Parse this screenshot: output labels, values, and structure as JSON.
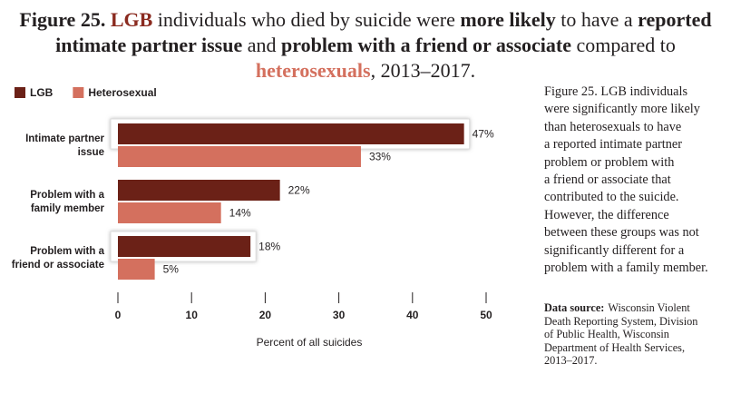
{
  "chart_data": {
    "type": "hbar",
    "title": [
      {
        "text": "Figure 25. ",
        "bold": true
      },
      {
        "text": "LGB",
        "bold": true,
        "color": "#8a2a1f"
      },
      {
        "text": " individuals who died by suicide were "
      },
      {
        "text": "more likely",
        "bold": true
      },
      {
        "text": " to have a "
      },
      {
        "text": "reported intimate partner issue",
        "bold": true
      },
      {
        "text": " and "
      },
      {
        "text": "problem with a friend or associate",
        "bold": true
      },
      {
        "text": " compared to "
      },
      {
        "text": "heterosexuals",
        "bold": true,
        "color": "#d4705e"
      },
      {
        "text": ", 2013–2017."
      }
    ],
    "categories": [
      "Intimate partner\nissue",
      "Problem with a\nfamily member",
      "Problem with a\nfriend or associate"
    ],
    "series": [
      {
        "name": "LGB",
        "color": "#6b2117",
        "values": [
          47,
          22,
          18
        ],
        "value_labels": [
          "47%",
          "22%",
          "18%"
        ],
        "highlighted": [
          true,
          false,
          true
        ]
      },
      {
        "name": "Heterosexual",
        "color": "#d4705e",
        "values": [
          33,
          14,
          5
        ],
        "value_labels": [
          "33%",
          "14%",
          "5%"
        ]
      }
    ],
    "x_label": "Percent of all suicides",
    "xlim": [
      0,
      50
    ],
    "xticks": [
      0,
      10,
      20,
      30,
      40,
      50
    ],
    "legend": "top-left",
    "note": [
      "Figure 25. LGB individuals",
      "were significantly more likely",
      "than heterosexuals to have",
      "a reported intimate partner",
      "problem or problem with",
      "a friend or associate that",
      "contributed to the suicide.",
      "However, the difference",
      "between these groups was not",
      "significantly different for a",
      "problem with a family member."
    ],
    "source_label": "Data source:",
    "source": [
      "Wisconsin Violent",
      "Death Reporting System, Division",
      "of Public Health, Wisconsin",
      "Department of Health Services,",
      "2013–2017."
    ]
  }
}
